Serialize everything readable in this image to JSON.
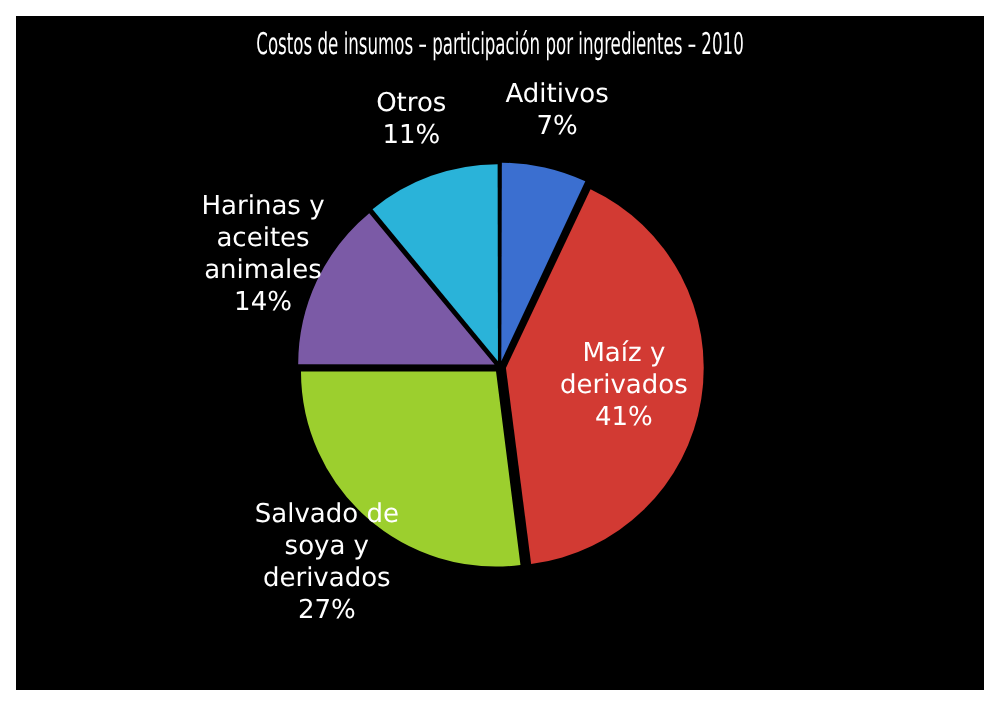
{
  "chart_data": {
    "type": "pie",
    "title": "Costos de insumos – participación por ingredientes – 2010",
    "categories": [
      "Aditivos",
      "Maíz y derivados",
      "Salvado de soya y derivados",
      "Harinas y aceites animales",
      "Otros"
    ],
    "values": [
      7,
      41,
      27,
      14,
      11
    ],
    "colors": [
      "#3b6fd0",
      "#d23a33",
      "#9ccf2e",
      "#7b5aa6",
      "#2ab3d9"
    ],
    "value_labels": [
      "7%",
      "41%",
      "27%",
      "14%",
      "11%"
    ],
    "legend": false
  }
}
